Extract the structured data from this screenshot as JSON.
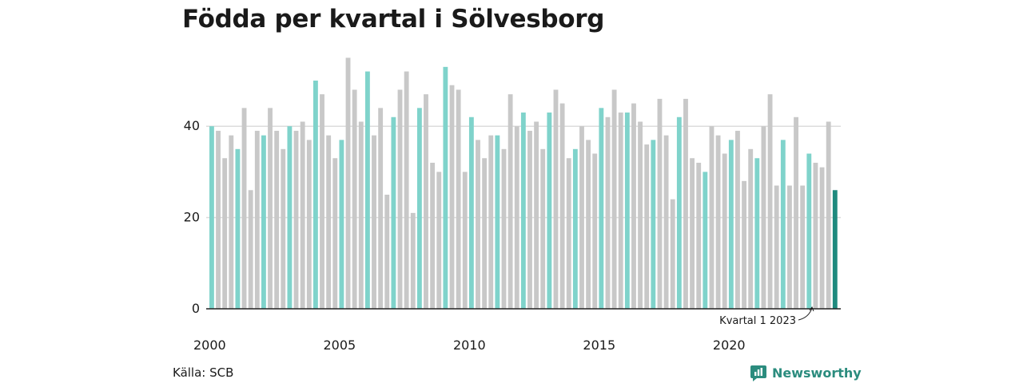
{
  "title": "Födda per kvartal i Sölvesborg",
  "source": "Källa: SCB",
  "brand": {
    "name": "Newsworthy",
    "icon": "chart-bubble-icon"
  },
  "colors": {
    "q1": "#7fd3cb",
    "other": "#c8c8c8",
    "latest": "#1f8a7e",
    "grid": "#dcdcdc",
    "axis": "#222222",
    "brand": "#2b8c7e"
  },
  "annotation": {
    "text": "Kvartal 1 2023"
  },
  "chart_data": {
    "type": "bar",
    "title": "Födda per kvartal i Sölvesborg",
    "start": {
      "year": 2000,
      "quarter": 1
    },
    "ylim": [
      0,
      55
    ],
    "yticks": [
      0,
      20,
      40
    ],
    "xticks": [
      2000,
      2005,
      2010,
      2015,
      2020
    ],
    "grid": true,
    "highlight": "first quarter of each year",
    "values": [
      40,
      39,
      33,
      38,
      35,
      44,
      26,
      39,
      38,
      44,
      39,
      35,
      40,
      39,
      41,
      37,
      50,
      47,
      38,
      33,
      37,
      55,
      48,
      41,
      52,
      38,
      44,
      25,
      42,
      48,
      52,
      21,
      44,
      47,
      32,
      30,
      53,
      49,
      48,
      30,
      42,
      37,
      33,
      38,
      38,
      35,
      47,
      40,
      43,
      39,
      41,
      35,
      43,
      48,
      45,
      33,
      35,
      40,
      37,
      34,
      44,
      42,
      48,
      43,
      43,
      45,
      41,
      36,
      37,
      46,
      38,
      24,
      42,
      46,
      33,
      32,
      30,
      40,
      38,
      34,
      37,
      39,
      28,
      35,
      33,
      40,
      47,
      27,
      37,
      27,
      42,
      27,
      34,
      32,
      31,
      41,
      26
    ]
  }
}
